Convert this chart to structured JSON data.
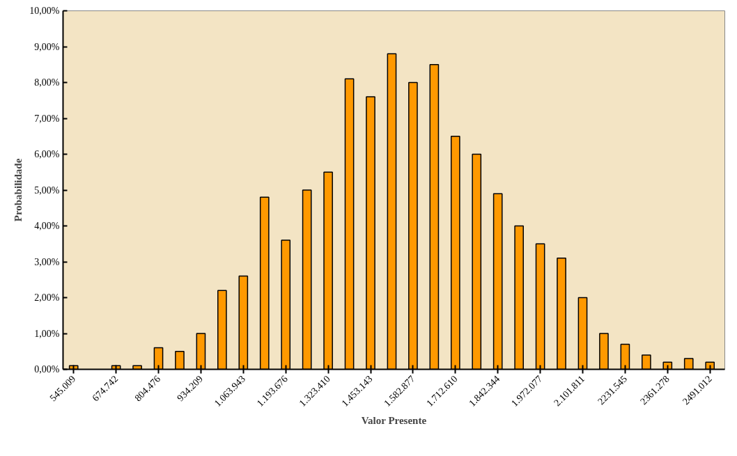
{
  "chart_data": {
    "type": "bar",
    "xlabel": "Valor Presente",
    "ylabel": "Probabilidade",
    "categories": [
      "545.009",
      null,
      "674.742",
      null,
      "804.476",
      null,
      "934.209",
      null,
      "1.063.943",
      null,
      "1.193.676",
      null,
      "1.323.410",
      null,
      "1.453.143",
      null,
      "1.582.877",
      null,
      "1.712.610",
      null,
      "1.842.344",
      null,
      "1.972.077",
      null,
      "2.101.811",
      null,
      "2231.545",
      null,
      "2361.278",
      null,
      "2491.012"
    ],
    "values": [
      0.1,
      0,
      0.1,
      0.1,
      0.6,
      0.5,
      1.0,
      2.2,
      2.6,
      4.8,
      3.6,
      5.0,
      5.5,
      8.1,
      7.6,
      8.8,
      8.0,
      8.5,
      6.5,
      6.0,
      4.9,
      4.0,
      3.5,
      3.1,
      2.0,
      1.0,
      0.7,
      0.4,
      0.2,
      0.3,
      0.2
    ],
    "color": "#ff9900",
    "ylim": [
      0,
      10
    ],
    "yticks": [
      {
        "value": 0,
        "label": "0,00%"
      },
      {
        "value": 1,
        "label": "1,00%"
      },
      {
        "value": 2,
        "label": "2,00%"
      },
      {
        "value": 3,
        "label": "3,00%"
      },
      {
        "value": 4,
        "label": "4,00%"
      },
      {
        "value": 5,
        "label": "5,00%"
      },
      {
        "value": 6,
        "label": "6,00%"
      },
      {
        "value": 7,
        "label": "7,00%"
      },
      {
        "value": 8,
        "label": "8,00%"
      },
      {
        "value": 9,
        "label": "9,00%"
      },
      {
        "value": 10,
        "label": "10,00%"
      }
    ],
    "grid": false
  }
}
